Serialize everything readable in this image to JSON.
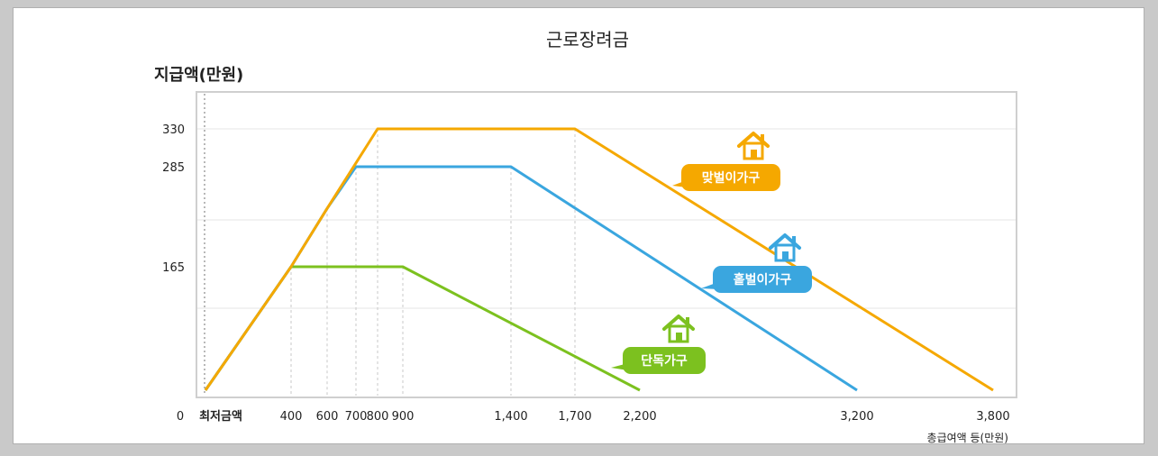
{
  "chart_data": {
    "type": "line",
    "title": "근로장려금",
    "ylabel": "지급액(만원)",
    "xlabel": "총급여액 등(만원)",
    "x_ticks": [
      {
        "value": 0,
        "label": "0"
      },
      {
        "value": 1,
        "label": "최저금액"
      },
      {
        "value": 400,
        "label": "400"
      },
      {
        "value": 600,
        "label": "600"
      },
      {
        "value": 700,
        "label": "700"
      },
      {
        "value": 800,
        "label": "800"
      },
      {
        "value": 900,
        "label": "900"
      },
      {
        "value": 1400,
        "label": "1,400"
      },
      {
        "value": 1700,
        "label": "1,700"
      },
      {
        "value": 2200,
        "label": "2,200"
      },
      {
        "value": 3200,
        "label": "3,200"
      },
      {
        "value": 3800,
        "label": "3,800"
      }
    ],
    "y_ticks": [
      {
        "value": 165,
        "label": "165"
      },
      {
        "value": 285,
        "label": "285"
      },
      {
        "value": 330,
        "label": "330"
      }
    ],
    "series": [
      {
        "name": "맞벌이가구",
        "color": "#f5a800",
        "points": [
          [
            1,
            0
          ],
          [
            400,
            165
          ],
          [
            600,
            235
          ],
          [
            800,
            330
          ],
          [
            1700,
            330
          ],
          [
            3800,
            0
          ]
        ]
      },
      {
        "name": "홑벌이가구",
        "color": "#3aa6df",
        "points": [
          [
            1,
            0
          ],
          [
            400,
            165
          ],
          [
            600,
            235
          ],
          [
            700,
            285
          ],
          [
            1400,
            285
          ],
          [
            3200,
            0
          ]
        ]
      },
      {
        "name": "단독가구",
        "color": "#7cc11f",
        "points": [
          [
            1,
            0
          ],
          [
            400,
            165
          ],
          [
            900,
            165
          ],
          [
            2200,
            0
          ]
        ]
      }
    ],
    "grid": true,
    "legend": "inline labels with house icons"
  }
}
